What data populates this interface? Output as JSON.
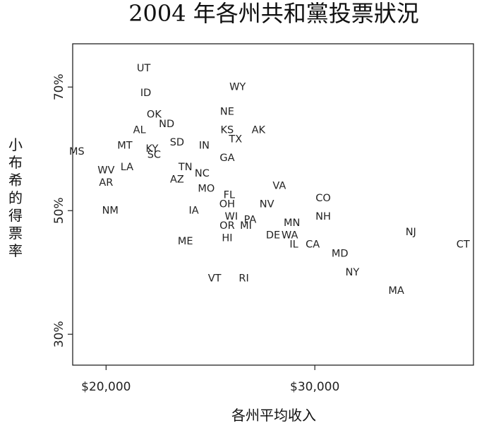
{
  "chart_data": {
    "type": "scatter",
    "title": "2004 年各州共和黨投票狀況",
    "xlabel": "各州平均收入",
    "ylabel": "小布希的得票率",
    "xlim": [
      18400,
      37600
    ],
    "ylim": [
      0.25,
      0.77
    ],
    "xticks": [
      20000,
      30000
    ],
    "xtick_labels": [
      "$20,000",
      "$30,000"
    ],
    "yticks": [
      0.3,
      0.5,
      0.7
    ],
    "ytick_labels": [
      "30%",
      "50%",
      "70%"
    ],
    "grid": false,
    "points": [
      {
        "label": "UT",
        "x": 21800,
        "y": 0.73
      },
      {
        "label": "WY",
        "x": 26300,
        "y": 0.7
      },
      {
        "label": "ID",
        "x": 21900,
        "y": 0.69
      },
      {
        "label": "NE",
        "x": 25800,
        "y": 0.66
      },
      {
        "label": "OK",
        "x": 22300,
        "y": 0.655
      },
      {
        "label": "ND",
        "x": 22900,
        "y": 0.64
      },
      {
        "label": "AL",
        "x": 21600,
        "y": 0.63
      },
      {
        "label": "KS",
        "x": 25800,
        "y": 0.63
      },
      {
        "label": "AK",
        "x": 27300,
        "y": 0.63
      },
      {
        "label": "TX",
        "x": 26200,
        "y": 0.615
      },
      {
        "label": "SD",
        "x": 23400,
        "y": 0.61
      },
      {
        "label": "MT",
        "x": 20900,
        "y": 0.605
      },
      {
        "label": "IN",
        "x": 24700,
        "y": 0.605
      },
      {
        "label": "KY",
        "x": 22200,
        "y": 0.6
      },
      {
        "label": "MS",
        "x": 18600,
        "y": 0.595
      },
      {
        "label": "SC",
        "x": 22300,
        "y": 0.59
      },
      {
        "label": "GA",
        "x": 25800,
        "y": 0.585
      },
      {
        "label": "LA",
        "x": 21000,
        "y": 0.57
      },
      {
        "label": "TN",
        "x": 23800,
        "y": 0.57
      },
      {
        "label": "WV",
        "x": 20000,
        "y": 0.565
      },
      {
        "label": "NC",
        "x": 24600,
        "y": 0.56
      },
      {
        "label": "AZ",
        "x": 23400,
        "y": 0.55
      },
      {
        "label": "AR",
        "x": 20000,
        "y": 0.545
      },
      {
        "label": "VA",
        "x": 28300,
        "y": 0.54
      },
      {
        "label": "MO",
        "x": 24800,
        "y": 0.535
      },
      {
        "label": "FL",
        "x": 25900,
        "y": 0.525
      },
      {
        "label": "CO",
        "x": 30400,
        "y": 0.52
      },
      {
        "label": "NV",
        "x": 27700,
        "y": 0.51
      },
      {
        "label": "OH",
        "x": 25800,
        "y": 0.51
      },
      {
        "label": "NM",
        "x": 20200,
        "y": 0.5
      },
      {
        "label": "IA",
        "x": 24200,
        "y": 0.5
      },
      {
        "label": "WI",
        "x": 26000,
        "y": 0.49
      },
      {
        "label": "NH",
        "x": 30400,
        "y": 0.49
      },
      {
        "label": "PA",
        "x": 26900,
        "y": 0.485
      },
      {
        "label": "MN",
        "x": 28900,
        "y": 0.48
      },
      {
        "label": "OR",
        "x": 25800,
        "y": 0.475
      },
      {
        "label": "MI",
        "x": 26700,
        "y": 0.475
      },
      {
        "label": "NJ",
        "x": 34600,
        "y": 0.465
      },
      {
        "label": "DE",
        "x": 28000,
        "y": 0.46
      },
      {
        "label": "WA",
        "x": 28800,
        "y": 0.46
      },
      {
        "label": "HI",
        "x": 25800,
        "y": 0.455
      },
      {
        "label": "ME",
        "x": 23800,
        "y": 0.45
      },
      {
        "label": "CA",
        "x": 29900,
        "y": 0.445
      },
      {
        "label": "CT",
        "x": 37100,
        "y": 0.445
      },
      {
        "label": "IL",
        "x": 29000,
        "y": 0.445
      },
      {
        "label": "MD",
        "x": 31200,
        "y": 0.43
      },
      {
        "label": "NY",
        "x": 31800,
        "y": 0.4
      },
      {
        "label": "VT",
        "x": 25200,
        "y": 0.39
      },
      {
        "label": "RI",
        "x": 26600,
        "y": 0.39
      },
      {
        "label": "MA",
        "x": 33900,
        "y": 0.37
      }
    ]
  }
}
